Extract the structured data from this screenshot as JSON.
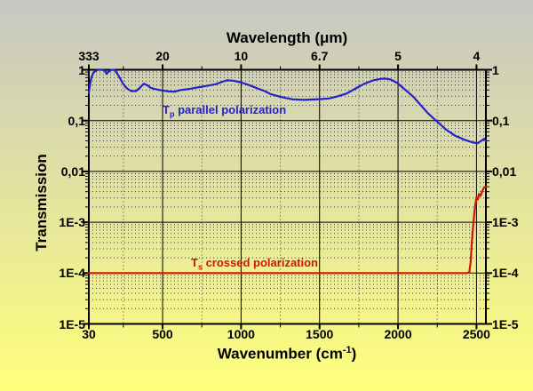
{
  "colors": {
    "bg_top": "#c7c7c3",
    "bg_bottom": "#ffff7c",
    "axis": "#000000",
    "grid_major": "#000000",
    "grid_minor_dot": "#3d3d3d",
    "series_parallel": "#2222cc",
    "series_crossed": "#cc1a00"
  },
  "chart_data": {
    "type": "line",
    "x_axis": {
      "title_parts": {
        "base": "Wavenumber (cm",
        "sup": "-1",
        "close": ")"
      },
      "scale": "linear",
      "min": 30,
      "max": 2560,
      "major_ticks": [
        {
          "value": 30,
          "label": "30"
        },
        {
          "value": 500,
          "label": "500"
        },
        {
          "value": 1000,
          "label": "1000"
        },
        {
          "value": 1500,
          "label": "1500"
        },
        {
          "value": 2000,
          "label": "2000"
        },
        {
          "value": 2500,
          "label": "2500"
        }
      ],
      "minor_ticks": [
        250,
        750,
        1250,
        1750,
        2250
      ]
    },
    "top_axis": {
      "title": "Wavelength (μm)",
      "ticks": [
        {
          "value": 30,
          "label": "333"
        },
        {
          "value": 500,
          "label": "20"
        },
        {
          "value": 1000,
          "label": "10"
        },
        {
          "value": 1500,
          "label": "6.7"
        },
        {
          "value": 2000,
          "label": "5"
        },
        {
          "value": 2500,
          "label": "4"
        }
      ]
    },
    "y_axis": {
      "title": "Transmission",
      "scale": "log",
      "min": 1e-05,
      "max": 1,
      "ticks": [
        {
          "value": 1,
          "label": "1"
        },
        {
          "value": 0.1,
          "label": "0,1"
        },
        {
          "value": 0.01,
          "label": "0,01"
        },
        {
          "value": 0.001,
          "label": "1E-3"
        },
        {
          "value": 0.0001,
          "label": "1E-4"
        },
        {
          "value": 1e-05,
          "label": "1E-5"
        }
      ]
    },
    "series": [
      {
        "id": "parallel",
        "label_parts": {
          "prefix": "T",
          "sub": "p",
          "rest": " parallel polarization"
        },
        "color": "#2222cc",
        "points": [
          [
            30,
            0.35
          ],
          [
            38,
            0.52
          ],
          [
            47,
            0.72
          ],
          [
            60,
            0.88
          ],
          [
            75,
            0.96
          ],
          [
            90,
            1.0
          ],
          [
            112,
            1.0
          ],
          [
            132,
            0.96
          ],
          [
            143,
            0.83
          ],
          [
            158,
            0.93
          ],
          [
            172,
            0.99
          ],
          [
            195,
            0.99
          ],
          [
            217,
            0.79
          ],
          [
            245,
            0.55
          ],
          [
            273,
            0.43
          ],
          [
            300,
            0.38
          ],
          [
            330,
            0.38
          ],
          [
            355,
            0.44
          ],
          [
            380,
            0.53
          ],
          [
            400,
            0.5
          ],
          [
            425,
            0.44
          ],
          [
            460,
            0.41
          ],
          [
            500,
            0.39
          ],
          [
            540,
            0.375
          ],
          [
            575,
            0.37
          ],
          [
            615,
            0.4
          ],
          [
            670,
            0.42
          ],
          [
            725,
            0.45
          ],
          [
            780,
            0.48
          ],
          [
            840,
            0.52
          ],
          [
            880,
            0.58
          ],
          [
            910,
            0.62
          ],
          [
            950,
            0.61
          ],
          [
            995,
            0.57
          ],
          [
            1050,
            0.5
          ],
          [
            1105,
            0.43
          ],
          [
            1150,
            0.38
          ],
          [
            1190,
            0.33
          ],
          [
            1240,
            0.3
          ],
          [
            1280,
            0.28
          ],
          [
            1330,
            0.262
          ],
          [
            1400,
            0.255
          ],
          [
            1450,
            0.26
          ],
          [
            1510,
            0.265
          ],
          [
            1560,
            0.272
          ],
          [
            1615,
            0.3
          ],
          [
            1672,
            0.34
          ],
          [
            1730,
            0.43
          ],
          [
            1785,
            0.53
          ],
          [
            1842,
            0.62
          ],
          [
            1887,
            0.66
          ],
          [
            1920,
            0.67
          ],
          [
            1955,
            0.64
          ],
          [
            1995,
            0.55
          ],
          [
            2040,
            0.42
          ],
          [
            2095,
            0.3
          ],
          [
            2140,
            0.21
          ],
          [
            2190,
            0.14
          ],
          [
            2250,
            0.095
          ],
          [
            2307,
            0.066
          ],
          [
            2366,
            0.05
          ],
          [
            2425,
            0.042
          ],
          [
            2478,
            0.037
          ],
          [
            2508,
            0.036
          ],
          [
            2530,
            0.04
          ],
          [
            2548,
            0.044
          ],
          [
            2560,
            0.04
          ]
        ]
      },
      {
        "id": "crossed",
        "label_parts": {
          "prefix": "T",
          "sub": "s",
          "rest": " crossed polarization"
        },
        "color": "#cc1a00",
        "points": [
          [
            30,
            0.0001
          ],
          [
            2440,
            0.0001
          ],
          [
            2455,
            0.000105
          ],
          [
            2462,
            0.00016
          ],
          [
            2468,
            0.0003
          ],
          [
            2474,
            0.0006
          ],
          [
            2480,
            0.00095
          ],
          [
            2487,
            0.0016
          ],
          [
            2494,
            0.0024
          ],
          [
            2500,
            0.0031
          ],
          [
            2508,
            0.0028
          ],
          [
            2516,
            0.0036
          ],
          [
            2526,
            0.0033
          ],
          [
            2538,
            0.0042
          ],
          [
            2548,
            0.0048
          ],
          [
            2560,
            0.005
          ]
        ]
      }
    ]
  }
}
